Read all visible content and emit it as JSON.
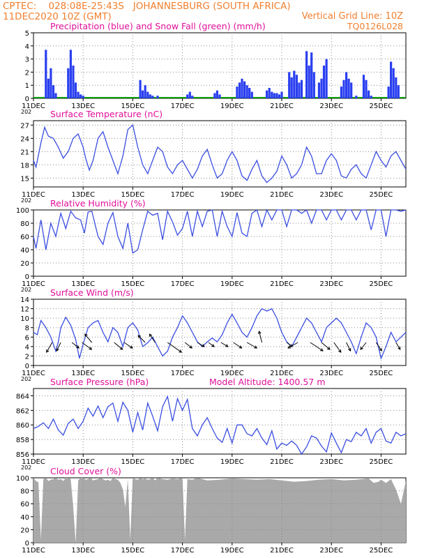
{
  "header": {
    "line1_left": "CPTEC:    028:08E-25:43S   JOHANNESBURG (SOUTH AFRICA)",
    "line2_left": "11DEC2020  10Z (GMT)",
    "line2_right": "Vertical Grid Line: 10Z",
    "code": "TQ0126L028",
    "header_color": "#f08030",
    "title_color": "#e0109a"
  },
  "x_ticks": [
    "11DEC",
    "13DEC",
    "15DEC",
    "17DEC",
    "19DEC",
    "21DEC",
    "23DEC",
    "25DEC"
  ],
  "x_tick_days": [
    0,
    2,
    4,
    6,
    8,
    10,
    12,
    14
  ],
  "x_range_days": [
    0,
    15
  ],
  "year_stub": "202",
  "chart_data": [
    {
      "id": "precip",
      "type": "bar",
      "title": "Precipitation (blue) and Snow Fall (green) (mm/h)",
      "ylim": [
        0,
        5
      ],
      "yticks": [
        0,
        1,
        2,
        3,
        4,
        5
      ],
      "color": "#2a3ff0",
      "snow_color": "#10a010",
      "x": [
        0.5,
        0.6,
        0.7,
        0.8,
        0.9,
        1.4,
        1.5,
        1.6,
        1.7,
        1.8,
        1.9,
        2.0,
        4.3,
        4.4,
        4.5,
        4.6,
        4.7,
        4.8,
        5.0,
        6.2,
        6.3,
        6.4,
        7.3,
        7.4,
        7.5,
        8.2,
        8.3,
        8.4,
        8.5,
        8.6,
        8.7,
        8.8,
        9.4,
        9.5,
        9.6,
        9.7,
        9.8,
        9.9,
        10.0,
        10.3,
        10.4,
        10.5,
        10.6,
        10.7,
        10.8,
        11.0,
        11.1,
        11.2,
        11.3,
        11.5,
        11.6,
        11.7,
        11.8,
        12.4,
        12.5,
        12.6,
        12.7,
        12.8,
        13.0,
        13.3,
        13.4,
        13.5,
        13.6,
        14.3,
        14.4,
        14.5,
        14.6,
        14.7
      ],
      "values": [
        3.7,
        1.5,
        2.3,
        1.0,
        0.4,
        2.3,
        3.7,
        2.5,
        1.2,
        0.5,
        0.3,
        0.2,
        1.4,
        0.6,
        1.0,
        0.5,
        0.3,
        0.2,
        0.2,
        0.3,
        0.5,
        0.2,
        0.4,
        0.6,
        0.3,
        0.9,
        1.2,
        1.5,
        1.3,
        1.0,
        0.8,
        0.5,
        0.6,
        0.8,
        0.5,
        0.4,
        0.4,
        0.3,
        0.5,
        2.0,
        1.6,
        2.1,
        1.8,
        1.2,
        1.4,
        3.6,
        2.5,
        3.5,
        2.0,
        1.2,
        1.5,
        2.5,
        3.0,
        0.9,
        1.4,
        2.0,
        1.5,
        1.2,
        0.2,
        1.8,
        1.4,
        0.6,
        0.2,
        0.9,
        2.8,
        2.3,
        1.6,
        1.0
      ]
    },
    {
      "id": "temp",
      "type": "line",
      "title": "Surface Temperature (nC)",
      "ylim": [
        13,
        28
      ],
      "yticks": [
        15,
        18,
        21,
        24,
        27
      ],
      "color": "#3a4ee0",
      "x": [
        0,
        0.1,
        0.3,
        0.45,
        0.6,
        0.8,
        1.0,
        1.2,
        1.4,
        1.6,
        1.8,
        2.0,
        2.1,
        2.25,
        2.4,
        2.6,
        2.8,
        3.0,
        3.2,
        3.4,
        3.6,
        3.8,
        4.0,
        4.2,
        4.4,
        4.6,
        4.8,
        5.0,
        5.2,
        5.4,
        5.6,
        5.8,
        6.0,
        6.2,
        6.4,
        6.6,
        6.8,
        7.0,
        7.2,
        7.4,
        7.6,
        7.8,
        8.0,
        8.2,
        8.4,
        8.6,
        8.8,
        9.0,
        9.2,
        9.4,
        9.6,
        9.8,
        10.0,
        10.2,
        10.4,
        10.6,
        10.8,
        11.0,
        11.2,
        11.4,
        11.6,
        11.8,
        12.0,
        12.2,
        12.4,
        12.6,
        12.8,
        13.0,
        13.2,
        13.4,
        13.6,
        13.8,
        14.0,
        14.2,
        14.4,
        14.6,
        14.8,
        15.0
      ],
      "values": [
        19,
        17.5,
        23,
        26.5,
        24.5,
        24,
        22,
        19.5,
        21,
        24,
        25,
        22,
        19.5,
        16.8,
        19,
        24,
        25.5,
        22,
        19,
        16,
        20,
        26,
        27,
        22,
        18,
        16,
        19,
        22,
        21,
        17.5,
        16,
        18,
        19,
        17,
        15,
        17,
        20,
        21.5,
        18,
        15,
        16,
        19,
        21,
        19,
        15.5,
        14.5,
        17,
        19,
        15.5,
        14,
        15,
        16.5,
        20,
        18,
        15,
        16,
        18,
        22,
        20,
        16,
        16,
        19,
        20.5,
        19,
        15.5,
        15,
        17,
        18,
        16,
        15,
        18,
        21,
        19,
        17.5,
        20,
        21,
        19,
        17
      ]
    },
    {
      "id": "rh",
      "type": "line",
      "title": "Relative Humidity (%)",
      "ylim": [
        0,
        100
      ],
      "yticks": [
        0,
        20,
        40,
        60,
        80,
        100
      ],
      "color": "#3a4ee0",
      "x": [
        0,
        0.1,
        0.3,
        0.5,
        0.7,
        0.9,
        1.1,
        1.3,
        1.5,
        1.7,
        1.9,
        2.05,
        2.2,
        2.35,
        2.6,
        2.8,
        3.0,
        3.2,
        3.4,
        3.6,
        3.8,
        4.0,
        4.2,
        4.4,
        4.6,
        4.8,
        5.0,
        5.2,
        5.4,
        5.6,
        5.8,
        6.0,
        6.2,
        6.4,
        6.6,
        6.8,
        7.0,
        7.2,
        7.4,
        7.6,
        7.8,
        8.0,
        8.2,
        8.4,
        8.6,
        8.8,
        9.0,
        9.2,
        9.4,
        9.6,
        9.8,
        10.0,
        10.2,
        10.4,
        10.6,
        10.8,
        11.0,
        11.2,
        11.4,
        11.6,
        11.8,
        12.0,
        12.2,
        12.4,
        12.6,
        12.8,
        13.0,
        13.2,
        13.4,
        13.6,
        13.8,
        14.0,
        14.2,
        14.4,
        14.6,
        14.8,
        15.0
      ],
      "values": [
        60,
        42,
        85,
        40,
        80,
        60,
        95,
        72,
        98,
        88,
        85,
        65,
        97,
        98,
        60,
        48,
        80,
        96,
        60,
        42,
        80,
        35,
        40,
        70,
        98,
        92,
        95,
        55,
        98,
        82,
        62,
        72,
        98,
        60,
        98,
        75,
        98,
        100,
        60,
        98,
        75,
        60,
        96,
        65,
        60,
        95,
        100,
        75,
        100,
        85,
        100,
        100,
        75,
        100,
        100,
        95,
        100,
        80,
        100,
        100,
        85,
        100,
        100,
        85,
        100,
        100,
        85,
        100,
        100,
        70,
        100,
        100,
        60,
        100,
        100,
        98,
        100
      ]
    },
    {
      "id": "wind",
      "type": "line",
      "title": "Surface Wind (m/s)",
      "ylim": [
        0,
        14
      ],
      "yticks": [
        0,
        2,
        4,
        6,
        8,
        10,
        12,
        14
      ],
      "color": "#3a4ee0",
      "x": [
        0,
        0.15,
        0.3,
        0.5,
        0.7,
        0.9,
        1.0,
        1.1,
        1.3,
        1.5,
        1.7,
        1.85,
        2.0,
        2.2,
        2.4,
        2.6,
        2.8,
        3.0,
        3.2,
        3.4,
        3.6,
        3.8,
        4.0,
        4.2,
        4.4,
        4.6,
        4.8,
        5.0,
        5.2,
        5.4,
        5.6,
        5.8,
        6.0,
        6.2,
        6.4,
        6.6,
        6.8,
        7.0,
        7.2,
        7.4,
        7.6,
        7.8,
        8.0,
        8.2,
        8.4,
        8.6,
        8.8,
        9.0,
        9.2,
        9.4,
        9.6,
        9.8,
        10.0,
        10.2,
        10.4,
        10.6,
        10.8,
        11.0,
        11.2,
        11.4,
        11.6,
        11.8,
        12.0,
        12.2,
        12.4,
        12.6,
        12.8,
        13.0,
        13.2,
        13.4,
        13.6,
        13.8,
        14.0,
        14.2,
        14.4,
        14.6,
        14.8,
        15.0
      ],
      "values": [
        7,
        6.5,
        9.5,
        8,
        6,
        3,
        5,
        8,
        10.2,
        8.5,
        5.5,
        1.5,
        4.5,
        8,
        9,
        9.5,
        7,
        5,
        8,
        7,
        4,
        8,
        9,
        7.5,
        4,
        4.8,
        6,
        4,
        2,
        3,
        6,
        8,
        10.5,
        9,
        7,
        5,
        4,
        5,
        5.8,
        5,
        6.5,
        9,
        10.8,
        9,
        7,
        6,
        8,
        10.5,
        12,
        11.5,
        12,
        10,
        7,
        5,
        4,
        6,
        8,
        10,
        9,
        7,
        5,
        8,
        9,
        10,
        9,
        7,
        5,
        2.5,
        6,
        9,
        8,
        6,
        1.5,
        4,
        7,
        5,
        6,
        7
      ]
    },
    {
      "id": "pressure",
      "type": "line",
      "title": "Surface Pressure (hPa)",
      "annotation": "Model Altitude: 1400.57 m",
      "ylim": [
        856,
        865
      ],
      "yticks": [
        856,
        858,
        860,
        862,
        864
      ],
      "color": "#3a4ee0",
      "x": [
        0,
        0.2,
        0.4,
        0.6,
        0.8,
        1.0,
        1.2,
        1.4,
        1.6,
        1.8,
        2.0,
        2.2,
        2.4,
        2.6,
        2.8,
        3.0,
        3.2,
        3.4,
        3.6,
        3.8,
        4.0,
        4.2,
        4.4,
        4.6,
        4.8,
        5.0,
        5.2,
        5.4,
        5.6,
        5.8,
        6.0,
        6.2,
        6.4,
        6.6,
        6.8,
        7.0,
        7.2,
        7.4,
        7.6,
        7.8,
        8.0,
        8.2,
        8.4,
        8.6,
        8.8,
        9.0,
        9.2,
        9.4,
        9.6,
        9.8,
        10.0,
        10.2,
        10.4,
        10.6,
        10.8,
        11.0,
        11.2,
        11.4,
        11.6,
        11.8,
        12.0,
        12.2,
        12.4,
        12.6,
        12.8,
        13.0,
        13.2,
        13.4,
        13.6,
        13.8,
        14.0,
        14.2,
        14.4,
        14.6,
        14.8,
        15.0
      ],
      "values": [
        859.5,
        859.8,
        860.3,
        859.5,
        860.8,
        859.3,
        858.6,
        860.2,
        860.8,
        859.5,
        860.5,
        862.3,
        861.2,
        862.6,
        861,
        862.5,
        863,
        860.5,
        863.1,
        862,
        859,
        861.7,
        859.3,
        863,
        861.2,
        859.2,
        862.5,
        863.9,
        860.5,
        863.6,
        862,
        863.5,
        859.5,
        858.5,
        860,
        861,
        859.5,
        858.2,
        857.6,
        859.5,
        857.5,
        860,
        860,
        858.8,
        858.5,
        859.5,
        858.2,
        857.3,
        859.2,
        856.7,
        857.5,
        857.2,
        857.8,
        857.2,
        855.8,
        857,
        858.5,
        858.2,
        857.1,
        856.3,
        858.9,
        857.5,
        856.2,
        858,
        857.7,
        859,
        858.5,
        859.5,
        857.5,
        859,
        859.5,
        857.8,
        857.5,
        859,
        858.5,
        858.8
      ]
    },
    {
      "id": "cloud",
      "type": "area",
      "title": "Cloud Cover (%)",
      "ylim": [
        0,
        100
      ],
      "yticks": [
        0,
        20,
        40,
        60,
        80,
        100
      ],
      "color": "#a9a9a9",
      "x": [
        0,
        0.1,
        0.2,
        0.3,
        0.4,
        0.5,
        0.6,
        0.7,
        0.8,
        0.9,
        1.0,
        1.1,
        1.2,
        1.3,
        1.4,
        1.5,
        1.6,
        1.7,
        1.8,
        1.9,
        2.0,
        2.1,
        2.2,
        2.3,
        2.4,
        2.5,
        2.6,
        2.7,
        2.8,
        2.9,
        3.0,
        3.1,
        3.2,
        3.3,
        3.4,
        3.5,
        3.6,
        3.7,
        3.8,
        3.9,
        4.0,
        4.1,
        4.2,
        4.3,
        4.4,
        4.5,
        4.6,
        4.7,
        4.8,
        4.9,
        5.0,
        5.2,
        5.4,
        5.6,
        5.8,
        6.0,
        6.1,
        6.2,
        6.4,
        6.6,
        6.8,
        7.0,
        7.5,
        8.0,
        8.5,
        9.0,
        9.5,
        10.0,
        10.5,
        11.0,
        11.5,
        12.0,
        12.5,
        13.0,
        13.5,
        13.7,
        13.9,
        14.0,
        14.2,
        14.4,
        14.6,
        14.8,
        15.0
      ],
      "values": [
        100,
        95,
        93,
        5,
        98,
        100,
        95,
        97,
        98,
        100,
        97,
        98,
        95,
        100,
        100,
        98,
        55,
        0,
        96,
        100,
        100,
        97,
        98,
        100,
        96,
        97,
        98,
        100,
        98,
        96,
        97,
        95,
        100,
        98,
        97,
        92,
        82,
        55,
        98,
        5,
        100,
        98,
        97,
        100,
        98,
        99,
        97,
        98,
        100,
        96,
        100,
        98,
        97,
        99,
        98,
        100,
        4,
        98,
        97,
        100,
        98,
        96,
        97,
        99,
        98,
        97,
        98,
        96,
        94,
        95,
        97,
        98,
        96,
        97,
        99,
        92,
        94,
        97,
        92,
        98,
        82,
        60,
        95
      ]
    }
  ]
}
